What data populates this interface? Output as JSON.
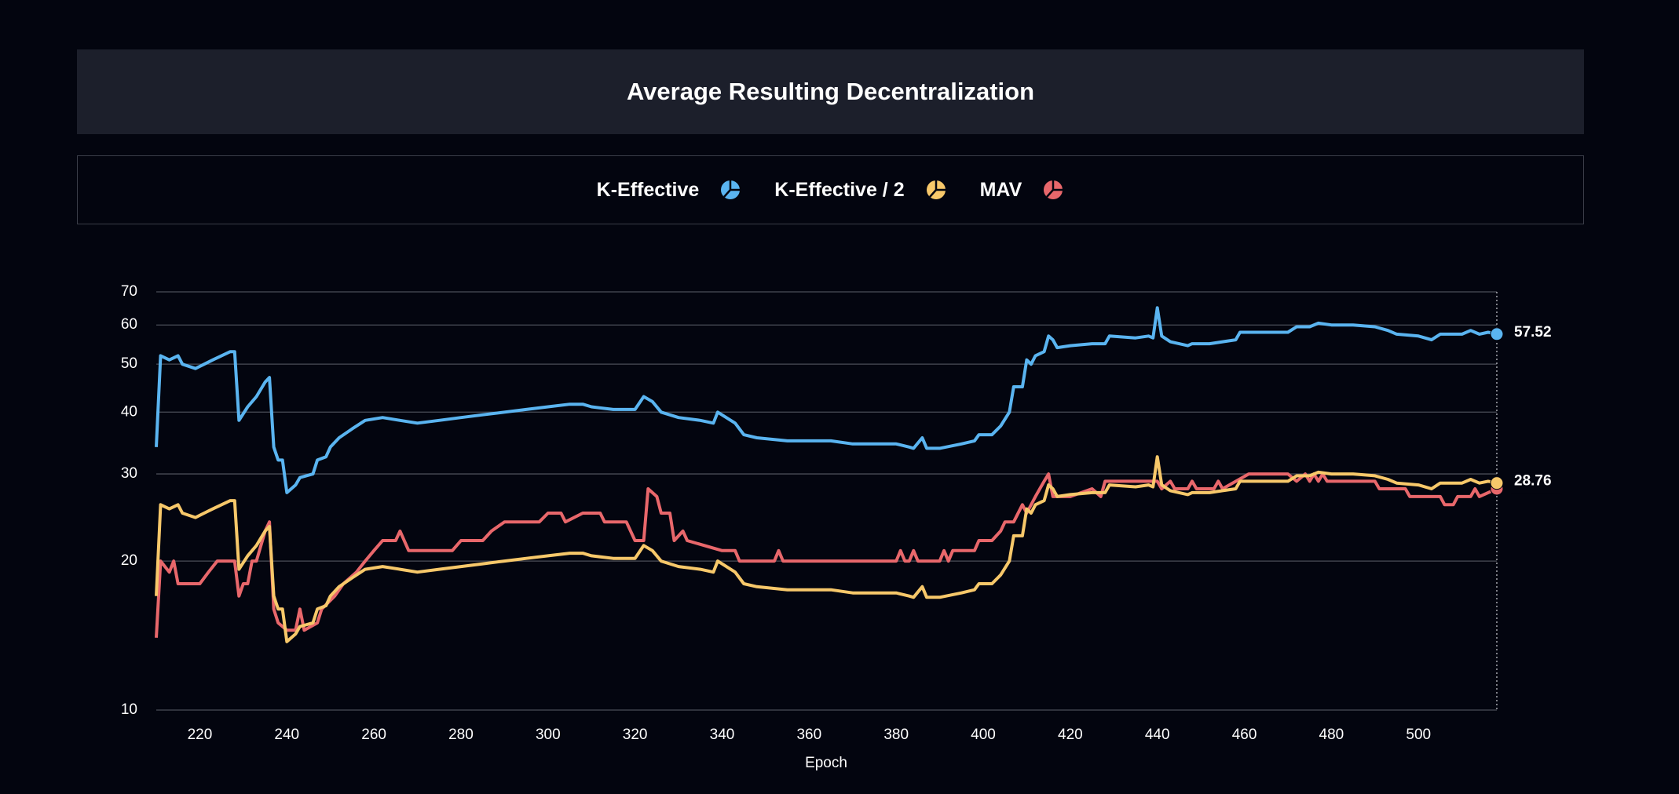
{
  "chart_data": {
    "type": "line",
    "title": "Average Resulting Decentralization",
    "x_label": "Epoch",
    "xlim": [
      210,
      518
    ],
    "xticks": [
      220,
      240,
      260,
      280,
      300,
      320,
      340,
      360,
      380,
      400,
      420,
      440,
      460,
      480,
      500
    ],
    "ylim": [
      10,
      70
    ],
    "yticks": [
      10,
      20,
      30,
      40,
      50,
      60,
      70
    ],
    "y_scale": "log",
    "grid": true,
    "series": [
      {
        "name": "K-Effective",
        "color": "#5ab4f0",
        "x": [
          210,
          211,
          213,
          215,
          216,
          219,
          221,
          223,
          225,
          227,
          228,
          229,
          231,
          233,
          235,
          236,
          237,
          238,
          239,
          240,
          242,
          243,
          246,
          247,
          249,
          250,
          252,
          255,
          258,
          262,
          266,
          270,
          275,
          280,
          285,
          290,
          295,
          300,
          305,
          308,
          310,
          315,
          320,
          322,
          324,
          326,
          330,
          335,
          338,
          339,
          343,
          345,
          348,
          355,
          360,
          365,
          370,
          375,
          380,
          383,
          384,
          386,
          387,
          390,
          395,
          398,
          399,
          402,
          404,
          406,
          407,
          409,
          410,
          411,
          412,
          414,
          415,
          416,
          417,
          420,
          425,
          428,
          429,
          435,
          438,
          439,
          440,
          441,
          443,
          447,
          448,
          452,
          455,
          458,
          459,
          465,
          470,
          472,
          475,
          477,
          480,
          485,
          490,
          493,
          495,
          500,
          503,
          505,
          510,
          512,
          514,
          516,
          518
        ],
        "values": [
          34,
          52,
          51,
          52,
          50,
          49,
          50,
          51,
          52,
          53,
          53,
          38.5,
          41,
          43,
          46,
          47,
          34,
          32,
          32,
          27.5,
          28.5,
          29.5,
          30,
          32,
          32.5,
          34,
          35.5,
          37,
          38.5,
          39,
          38.5,
          38,
          38.5,
          39,
          39.5,
          40,
          40.5,
          41,
          41.5,
          41.5,
          41,
          40.5,
          40.5,
          43,
          42,
          40,
          39,
          38.5,
          38,
          40,
          38,
          36,
          35.5,
          35,
          35,
          35,
          34.5,
          34.5,
          34.5,
          34,
          33.8,
          35.5,
          33.8,
          33.8,
          34.5,
          35,
          36,
          36,
          37.5,
          40,
          45,
          45,
          51,
          50,
          52,
          53,
          57,
          56,
          54,
          54.5,
          55,
          55,
          57,
          56.5,
          57,
          56.5,
          65,
          57,
          55.5,
          54.5,
          55,
          55,
          55.5,
          56,
          58,
          58,
          58,
          59.5,
          59.5,
          60.5,
          60,
          60,
          59.5,
          58.5,
          57.5,
          57,
          56,
          57.5,
          57.5,
          58.5,
          57.5,
          58,
          57.52
        ]
      },
      {
        "name": "K-Effective / 2",
        "color": "#f7c86a",
        "x": [
          210,
          211,
          213,
          215,
          216,
          219,
          221,
          223,
          225,
          227,
          228,
          229,
          231,
          233,
          235,
          236,
          237,
          238,
          239,
          240,
          242,
          243,
          246,
          247,
          249,
          250,
          252,
          255,
          258,
          262,
          266,
          270,
          275,
          280,
          285,
          290,
          295,
          300,
          305,
          308,
          310,
          315,
          320,
          322,
          324,
          326,
          330,
          335,
          338,
          339,
          343,
          345,
          348,
          355,
          360,
          365,
          370,
          375,
          380,
          383,
          384,
          386,
          387,
          390,
          395,
          398,
          399,
          402,
          404,
          406,
          407,
          409,
          410,
          411,
          412,
          414,
          415,
          416,
          417,
          420,
          425,
          428,
          429,
          435,
          438,
          439,
          440,
          441,
          443,
          447,
          448,
          452,
          455,
          458,
          459,
          465,
          470,
          472,
          475,
          477,
          480,
          485,
          490,
          493,
          495,
          500,
          503,
          505,
          510,
          512,
          514,
          516,
          518
        ],
        "values": [
          17,
          26,
          25.5,
          26,
          25,
          24.5,
          25,
          25.5,
          26,
          26.5,
          26.5,
          19.25,
          20.5,
          21.5,
          23,
          23.5,
          17,
          16,
          16,
          13.75,
          14.25,
          14.75,
          15,
          16,
          16.25,
          17,
          17.75,
          18.5,
          19.25,
          19.5,
          19.25,
          19,
          19.25,
          19.5,
          19.75,
          20,
          20.25,
          20.5,
          20.75,
          20.75,
          20.5,
          20.25,
          20.25,
          21.5,
          21,
          20,
          19.5,
          19.25,
          19,
          20,
          19,
          18,
          17.75,
          17.5,
          17.5,
          17.5,
          17.25,
          17.25,
          17.25,
          17,
          16.9,
          17.75,
          16.9,
          16.9,
          17.25,
          17.5,
          18,
          18,
          18.75,
          20,
          22.5,
          22.5,
          25.5,
          25,
          26,
          26.5,
          28.5,
          28,
          27,
          27.25,
          27.5,
          27.5,
          28.5,
          28.25,
          28.5,
          28.25,
          32.5,
          28.5,
          27.75,
          27.25,
          27.5,
          27.5,
          27.75,
          28,
          29,
          29,
          29,
          29.75,
          29.75,
          30.25,
          30,
          30,
          29.75,
          29.25,
          28.75,
          28.5,
          28,
          28.75,
          28.75,
          29.25,
          28.75,
          29,
          28.76
        ]
      },
      {
        "name": "MAV",
        "color": "#e8676b",
        "x": [
          210,
          211,
          213,
          214,
          215,
          220,
          222,
          224,
          228,
          229,
          230,
          231,
          232,
          233,
          235,
          236,
          237,
          238,
          240,
          242,
          243,
          244,
          247,
          248,
          251,
          253,
          256,
          258,
          260,
          262,
          265,
          266,
          268,
          270,
          278,
          280,
          285,
          287,
          290,
          298,
          300,
          303,
          304,
          308,
          312,
          313,
          318,
          320,
          322,
          323,
          325,
          326,
          328,
          329,
          331,
          332,
          340,
          343,
          344,
          352,
          353,
          354,
          380,
          381,
          382,
          383,
          384,
          385,
          390,
          391,
          392,
          393,
          398,
          399,
          402,
          404,
          405,
          407,
          409,
          410,
          412,
          413,
          414,
          415,
          416,
          420,
          425,
          427,
          428,
          440,
          441,
          443,
          444,
          447,
          448,
          449,
          453,
          454,
          455,
          461,
          470,
          472,
          474,
          475,
          476,
          477,
          478,
          479,
          490,
          491,
          497,
          498,
          505,
          506,
          508,
          509,
          512,
          513,
          514,
          518
        ],
        "values": [
          14,
          20,
          19,
          20,
          18,
          18,
          19,
          20,
          20,
          17,
          18,
          18,
          20,
          20,
          23,
          24,
          16,
          15,
          14.5,
          14.5,
          16,
          14.5,
          15,
          16,
          17,
          18,
          19,
          20,
          21,
          22,
          22,
          23,
          21,
          21,
          21,
          22,
          22,
          23,
          24,
          24,
          25,
          25,
          24,
          25,
          25,
          24,
          24,
          22,
          22,
          28,
          27,
          25,
          25,
          22,
          23,
          22,
          21,
          21,
          20,
          20,
          21,
          20,
          20,
          21,
          20,
          20,
          21,
          20,
          20,
          21,
          20,
          21,
          21,
          22,
          22,
          23,
          24,
          24,
          26,
          25,
          27,
          28,
          29,
          30,
          27,
          27,
          28,
          27,
          29,
          29,
          28,
          29,
          28,
          28,
          29,
          28,
          28,
          29,
          28,
          30,
          30,
          29,
          30,
          29,
          30,
          29,
          30,
          29,
          29,
          28,
          28,
          27,
          27,
          26,
          26,
          27,
          27,
          28,
          27,
          28
        ]
      }
    ]
  }
}
